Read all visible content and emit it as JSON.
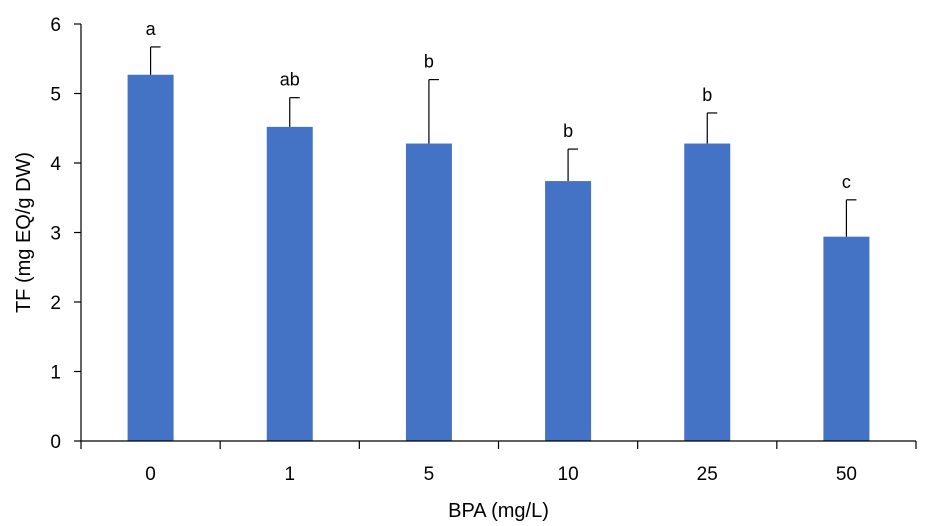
{
  "chart_data": {
    "type": "bar",
    "xlabel": "BPA (mg/L)",
    "ylabel": "TF (mg EQ/g DW)",
    "categories": [
      "0",
      "1",
      "5",
      "10",
      "25",
      "50"
    ],
    "values": [
      5.27,
      4.52,
      4.28,
      3.74,
      4.28,
      2.94
    ],
    "error": [
      0.4,
      0.42,
      0.92,
      0.46,
      0.44,
      0.53
    ],
    "significance_labels": [
      "a",
      "ab",
      "b",
      "b",
      "b",
      "c"
    ],
    "ylim": [
      0,
      6
    ],
    "yticks": [
      "0",
      "1",
      "2",
      "3",
      "4",
      "5",
      "6"
    ],
    "grid": false,
    "legend": "none",
    "bar_color": "#4472C4"
  }
}
